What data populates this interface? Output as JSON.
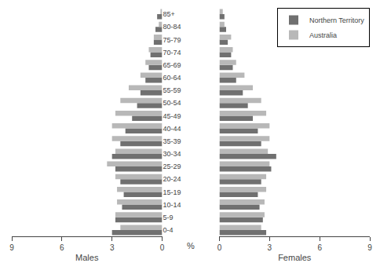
{
  "chart_data": [
    {
      "type": "bar",
      "orientation": "horizontal",
      "categories": [
        "0-4",
        "5-9",
        "10-14",
        "15-19",
        "20-24",
        "25-29",
        "30-34",
        "35-39",
        "40-44",
        "45-49",
        "50-54",
        "55-59",
        "60-64",
        "65-69",
        "70-74",
        "75-79",
        "80-84",
        "85+"
      ],
      "xlabel": "Males",
      "xlim": [
        9,
        0
      ],
      "xticks": [
        9,
        6,
        3,
        0
      ],
      "grid": false,
      "annotations": [
        "%"
      ],
      "series": [
        {
          "name": "Northern Territory",
          "color": "#707070",
          "values": [
            3.0,
            2.8,
            2.4,
            2.3,
            2.5,
            2.8,
            3.0,
            2.5,
            2.2,
            1.8,
            1.5,
            1.3,
            1.0,
            0.8,
            0.7,
            0.5,
            0.4,
            0.3
          ]
        },
        {
          "name": "Australia",
          "color": "#b8b8b8",
          "values": [
            2.5,
            2.8,
            2.7,
            2.7,
            2.8,
            3.3,
            2.8,
            3.0,
            3.0,
            2.8,
            2.5,
            2.0,
            1.3,
            1.0,
            0.8,
            0.5,
            0.2,
            0.1
          ]
        }
      ]
    },
    {
      "type": "bar",
      "orientation": "horizontal",
      "categories": [
        "0-4",
        "5-9",
        "10-14",
        "15-19",
        "20-24",
        "25-29",
        "30-34",
        "35-39",
        "40-44",
        "45-49",
        "50-54",
        "55-59",
        "60-64",
        "65-69",
        "70-74",
        "75-79",
        "80-84",
        "85+"
      ],
      "xlabel": "Females",
      "xlim": [
        0,
        9
      ],
      "xticks": [
        0,
        3,
        6,
        9
      ],
      "grid": false,
      "tick_labels": "x",
      "legend": "upper right",
      "series": [
        {
          "name": "Northern Territory",
          "color": "#707070",
          "values": [
            2.8,
            2.6,
            2.4,
            2.3,
            2.5,
            3.1,
            3.4,
            2.5,
            2.3,
            2.0,
            1.7,
            1.4,
            1.0,
            0.8,
            0.7,
            0.5,
            0.4,
            0.3
          ]
        },
        {
          "name": "Australia",
          "color": "#b8b8b8",
          "values": [
            2.5,
            2.7,
            2.7,
            2.8,
            2.8,
            3.0,
            2.9,
            3.0,
            3.0,
            2.8,
            2.5,
            2.0,
            1.5,
            1.0,
            0.8,
            0.7,
            0.3,
            0.2
          ]
        }
      ]
    }
  ]
}
